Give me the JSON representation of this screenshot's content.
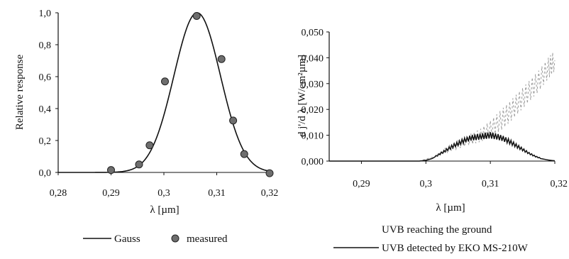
{
  "chart_data": [
    {
      "type": "line",
      "xlabel": "λ  [µm]",
      "ylabel": "Relative response",
      "xlim": [
        0.28,
        0.32
      ],
      "ylim": [
        0.0,
        1.0
      ],
      "x_ticks": [
        "0,28",
        "0,29",
        "0,3",
        "0,31",
        "0,32"
      ],
      "y_ticks": [
        "0,0",
        "0,2",
        "0,4",
        "0,6",
        "0,8",
        "1,0"
      ],
      "grid": false,
      "legend_position": "bottom",
      "series": [
        {
          "name": "Gauss",
          "style": "solid-line",
          "gauss": {
            "center": 0.3063,
            "sigma": 0.0044,
            "amplitude": 1.0
          }
        },
        {
          "name": "measured",
          "style": "markers",
          "x": [
            0.29,
            0.2953,
            0.2973,
            0.3002,
            0.3062,
            0.3109,
            0.3131,
            0.3152,
            0.32
          ],
          "y": [
            0.015,
            0.05,
            0.17,
            0.57,
            0.98,
            0.71,
            0.325,
            0.115,
            -0.005
          ]
        }
      ]
    },
    {
      "type": "line",
      "xlabel": "λ  [µm]",
      "ylabel": "d j'/d λ  [W/cm²µm]",
      "xlim": [
        0.285,
        0.32
      ],
      "ylim": [
        0.0,
        0.05
      ],
      "x_ticks": [
        "0,29",
        "0,3",
        "0,31",
        "0,32"
      ],
      "y_ticks": [
        "0,000",
        "0,010",
        "0,020",
        "0,030",
        "0,040",
        "0,050"
      ],
      "grid": false,
      "legend_position": "bottom",
      "series": [
        {
          "name": "UVB reaching the ground",
          "style": "dashed-light",
          "x": [
            0.285,
            0.299,
            0.301,
            0.303,
            0.305,
            0.307,
            0.3085,
            0.31,
            0.3115,
            0.313,
            0.3145,
            0.316,
            0.3175,
            0.319,
            0.32
          ],
          "y": [
            0.0,
            0.0,
            0.0015,
            0.004,
            0.0065,
            0.0085,
            0.01,
            0.0125,
            0.0155,
            0.019,
            0.023,
            0.027,
            0.031,
            0.036,
            0.039
          ]
        },
        {
          "name": "UVB detected by EKO MS-210W",
          "style": "solid-line",
          "x": [
            0.285,
            0.299,
            0.3,
            0.301,
            0.302,
            0.303,
            0.304,
            0.305,
            0.306,
            0.307,
            0.308,
            0.309,
            0.31,
            0.311,
            0.312,
            0.313,
            0.314,
            0.315,
            0.316,
            0.317,
            0.318,
            0.319,
            0.32
          ],
          "y": [
            0.0,
            0.0,
            0.0003,
            0.001,
            0.0025,
            0.004,
            0.0055,
            0.0068,
            0.008,
            0.009,
            0.0093,
            0.0097,
            0.01,
            0.0095,
            0.0087,
            0.0075,
            0.006,
            0.0045,
            0.003,
            0.0018,
            0.0009,
            0.0004,
            0.0001
          ]
        }
      ]
    }
  ]
}
